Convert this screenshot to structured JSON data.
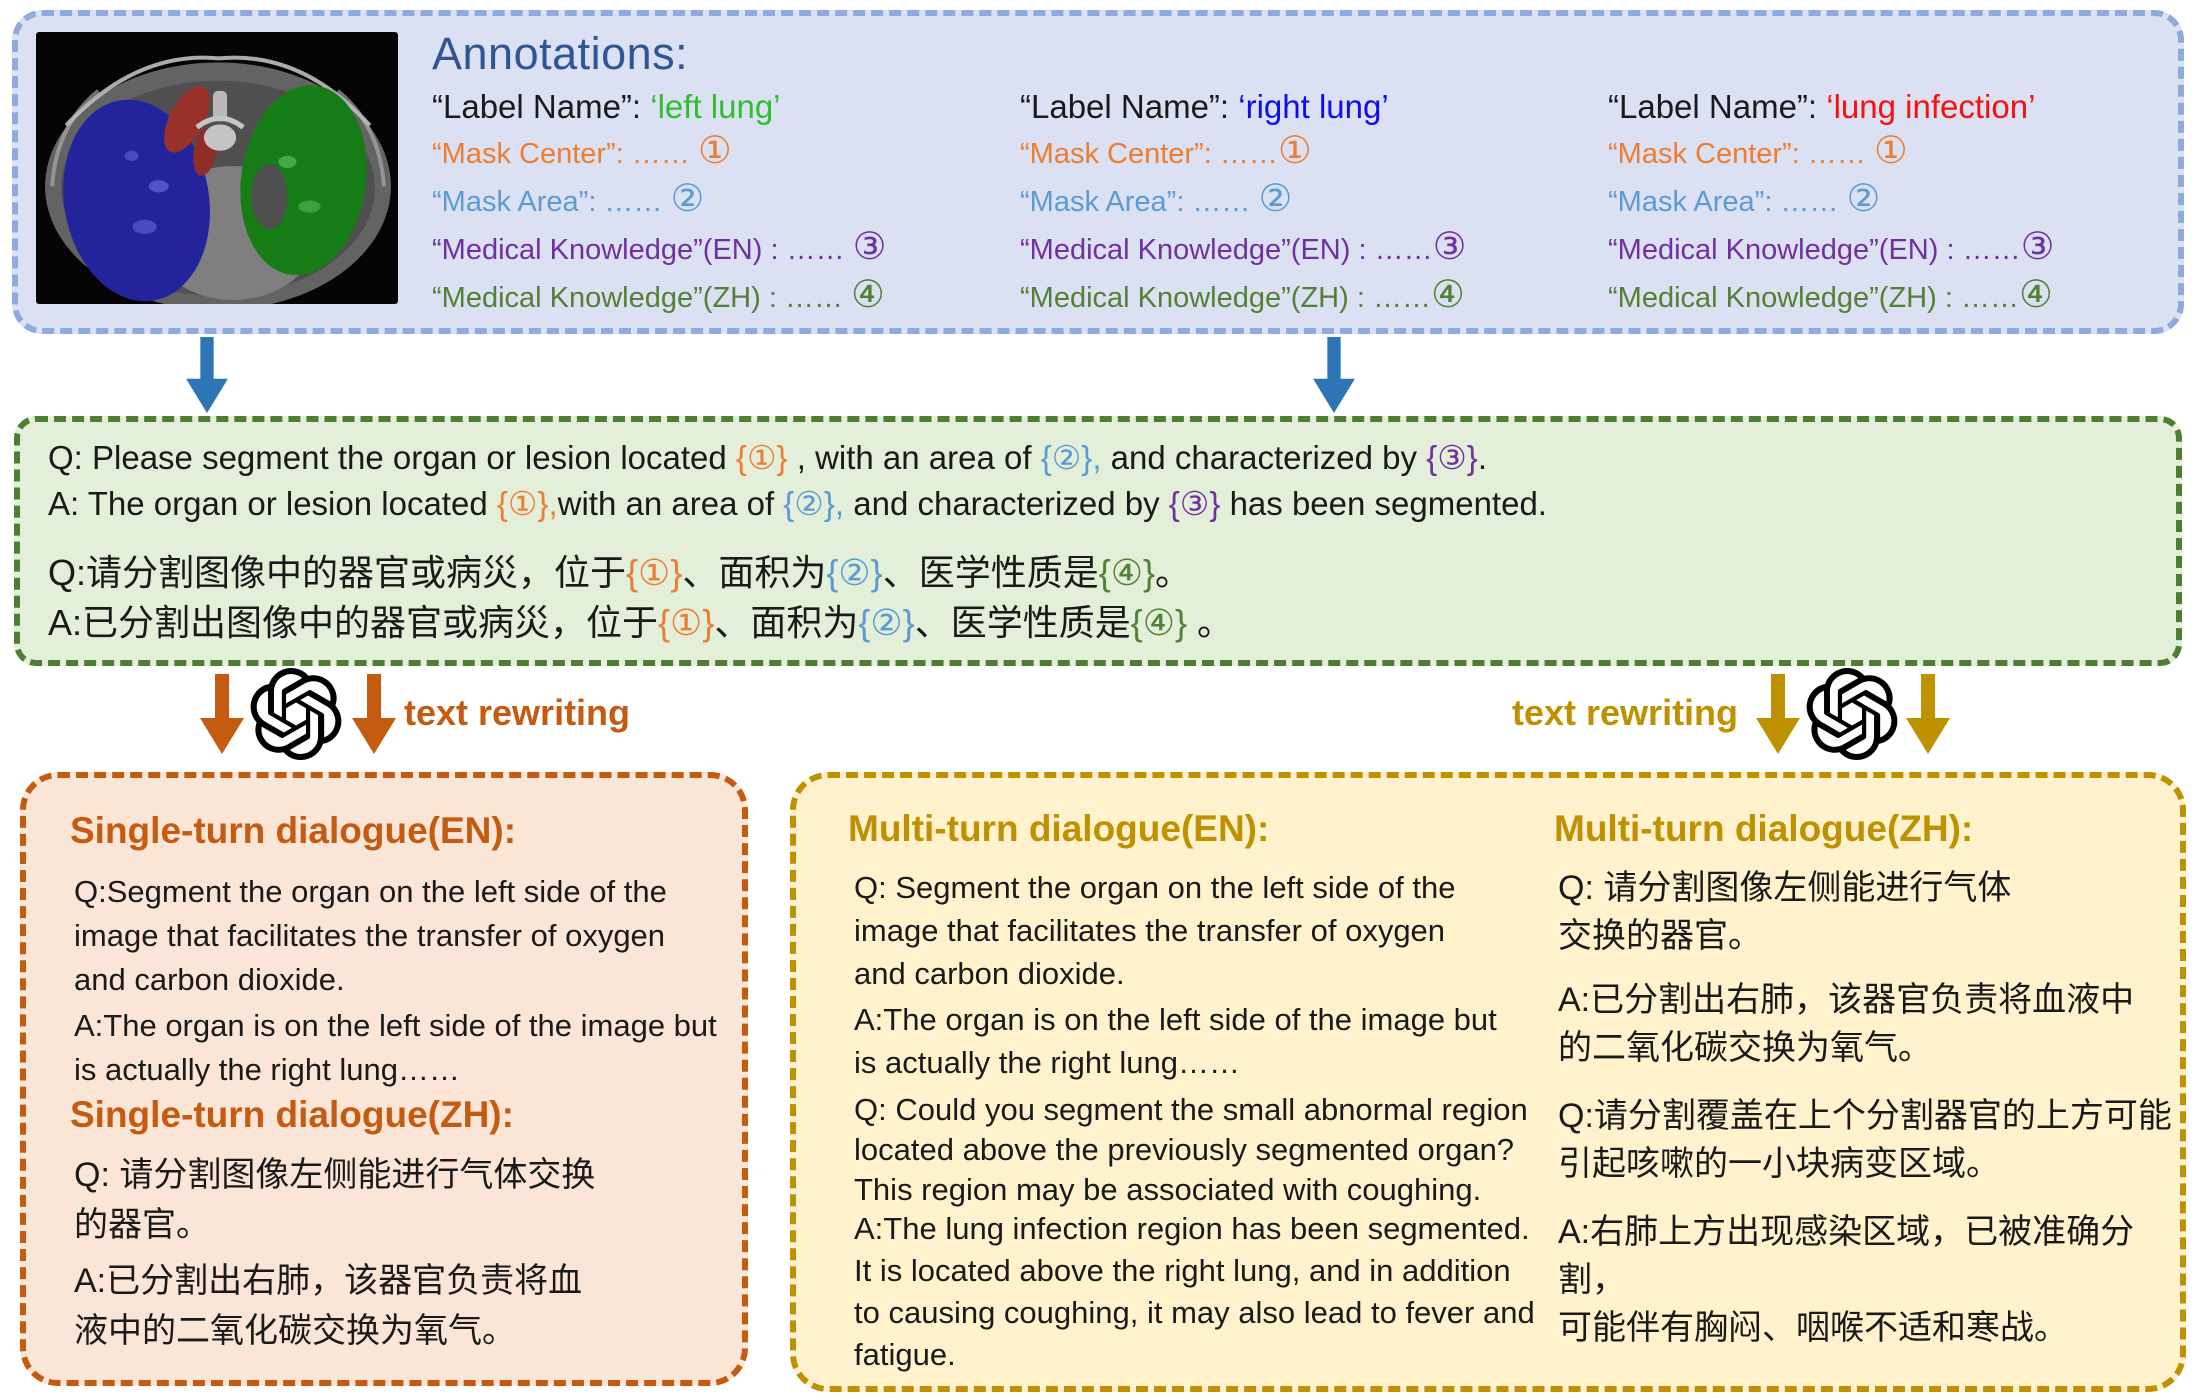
{
  "colors": {
    "annot_bg": "#dbe1f2",
    "annot_border": "#8faadc",
    "annot_title": "#2f5597",
    "template_bg": "#e3efd9",
    "template_border": "#4e7e32",
    "single_bg": "#fbe5d6",
    "single_accent": "#c55a11",
    "multi_bg": "#fff2cc",
    "multi_accent": "#bf9000",
    "flow_arrow_blue": "#2e75b6",
    "placeholder_1_orange": "#ed7d31",
    "placeholder_2_blue": "#5b9bd5",
    "placeholder_3_purple": "#7030a0",
    "placeholder_4_green": "#538135",
    "label_left_lung": "#2ebe2e",
    "label_right_lung": "#0d0df0",
    "label_lung_infection": "#fa0f0f"
  },
  "annotations": {
    "title": "Annotations:",
    "columns": [
      {
        "label_name": [
          {
            "t": "“Label Name”: ",
            "c": "k"
          },
          {
            "t": "‘left lung’",
            "c": "lg"
          }
        ],
        "mask_center": [
          {
            "t": "“Mask Center”: …… ",
            "c": "o"
          },
          {
            "t": "①",
            "c": "o n"
          }
        ],
        "mask_area": [
          {
            "t": "“Mask Area”: …… ",
            "c": "b"
          },
          {
            "t": "②",
            "c": "b n"
          }
        ],
        "mk_en": [
          {
            "t": "“Medical Knowledge”(EN) : …… ",
            "c": "p"
          },
          {
            "t": "③",
            "c": "p n"
          }
        ],
        "mk_zh": [
          {
            "t": "“Medical Knowledge”(ZH) : …… ",
            "c": "g"
          },
          {
            "t": "④",
            "c": "g n"
          }
        ]
      },
      {
        "label_name": [
          {
            "t": "“Label Name”: ",
            "c": "k"
          },
          {
            "t": "‘right lung’",
            "c": "lb"
          }
        ],
        "mask_center": [
          {
            "t": "“Mask Center”: ……",
            "c": "o"
          },
          {
            "t": "①",
            "c": "o n"
          }
        ],
        "mask_area": [
          {
            "t": "“Mask Area”: …… ",
            "c": "b"
          },
          {
            "t": "②",
            "c": "b n"
          }
        ],
        "mk_en": [
          {
            "t": "“Medical Knowledge”(EN) : ……",
            "c": "p"
          },
          {
            "t": "③",
            "c": "p n"
          }
        ],
        "mk_zh": [
          {
            "t": "“Medical Knowledge”(ZH) : ……",
            "c": "g"
          },
          {
            "t": "④",
            "c": "g n"
          }
        ]
      },
      {
        "label_name": [
          {
            "t": "“Label Name”: ",
            "c": "k"
          },
          {
            "t": "‘lung infection’",
            "c": "lr"
          }
        ],
        "mask_center": [
          {
            "t": "“Mask Center”: …… ",
            "c": "o"
          },
          {
            "t": "①",
            "c": "o n"
          }
        ],
        "mask_area": [
          {
            "t": "“Mask Area”: …… ",
            "c": "b"
          },
          {
            "t": "②",
            "c": "b n"
          }
        ],
        "mk_en": [
          {
            "t": "“Medical Knowledge”(EN) : ……",
            "c": "p"
          },
          {
            "t": "③",
            "c": "p n"
          }
        ],
        "mk_zh": [
          {
            "t": "“Medical Knowledge”(ZH) : ……",
            "c": "g"
          },
          {
            "t": "④",
            "c": "g n"
          }
        ]
      }
    ]
  },
  "template": {
    "q_en": [
      {
        "t": "Q: Please segment the organ or lesion located ",
        "c": "k"
      },
      {
        "t": "{①}",
        "c": "o"
      },
      {
        "t": " , with an area of ",
        "c": "k"
      },
      {
        "t": "{②},",
        "c": "b"
      },
      {
        "t": " and characterized by ",
        "c": "k"
      },
      {
        "t": "{③}",
        "c": "p"
      },
      {
        "t": ".",
        "c": "k"
      }
    ],
    "a_en": [
      {
        "t": "A: The organ or lesion located ",
        "c": "k"
      },
      {
        "t": "{①},",
        "c": "o"
      },
      {
        "t": "with an area of ",
        "c": "k"
      },
      {
        "t": "{②},",
        "c": "b"
      },
      {
        "t": " and characterized by ",
        "c": "k"
      },
      {
        "t": "{③}",
        "c": "p"
      },
      {
        "t": " has been segmented.",
        "c": "k"
      }
    ],
    "q_zh": [
      {
        "t": "Q:请分割图像中的器官或病災，位于",
        "c": "k"
      },
      {
        "t": "{①}",
        "c": "o"
      },
      {
        "t": "、面积为",
        "c": "k"
      },
      {
        "t": "{②}",
        "c": "b"
      },
      {
        "t": "、医学性质是",
        "c": "k"
      },
      {
        "t": "{④}",
        "c": "g"
      },
      {
        "t": "。",
        "c": "k"
      }
    ],
    "a_zh": [
      {
        "t": "A:已分割出图像中的器官或病災，位于",
        "c": "k"
      },
      {
        "t": "{①}",
        "c": "o"
      },
      {
        "t": "、面积为",
        "c": "k"
      },
      {
        "t": "{②}",
        "c": "b"
      },
      {
        "t": "、医学性质是",
        "c": "k"
      },
      {
        "t": "{④}",
        "c": "g"
      },
      {
        "t": " 。",
        "c": "k"
      }
    ]
  },
  "rewriting": {
    "left_label": "text rewriting",
    "right_label": "text rewriting"
  },
  "single_turn": {
    "title_en": "Single-turn dialogue(EN):",
    "q_en": "Q:Segment the organ on the left side of the\nimage that facilitates the transfer of oxygen\nand carbon dioxide.",
    "a_en": "A:The organ is on the left side of the image but\nis actually the right lung……",
    "title_zh": "Single-turn dialogue(ZH):",
    "q_zh": "Q: 请分割图像左侧能进行气体交换\n的器官。",
    "a_zh": "A:已分割出右肺，该器官负责将血\n液中的二氧化碳交换为氧气。"
  },
  "multi_turn": {
    "title_en": "Multi-turn dialogue(EN):",
    "en_p1": "Q: Segment the organ on the left side of the\nimage that facilitates the transfer of oxygen\nand carbon dioxide.",
    "en_p2": "A:The organ is on the left side of the image but\nis actually the right lung……",
    "en_p3": "Q: Could you segment the small abnormal region\nlocated above the previously segmented organ?\nThis region may be associated with coughing.",
    "en_p4": "A:The lung infection region has been segmented.\nIt is located above the right lung, and in addition\nto causing coughing, it may also lead to fever and\nfatigue.",
    "title_zh": "Multi-turn dialogue(ZH):",
    "zh_p1": "Q: 请分割图像左侧能进行气体\n交换的器官。",
    "zh_p2": "A:已分割出右肺，该器官负责将血液中\n的二氧化碳交换为氧气。",
    "zh_p3": "Q:请分割覆盖在上个分割器官的上方可能\n引起咳嗽的一小块病变区域。",
    "zh_p4": "A:右肺上方出现感染区域，已被准确分割，\n可能伴有胸闷、咽喉不适和寒战。"
  }
}
